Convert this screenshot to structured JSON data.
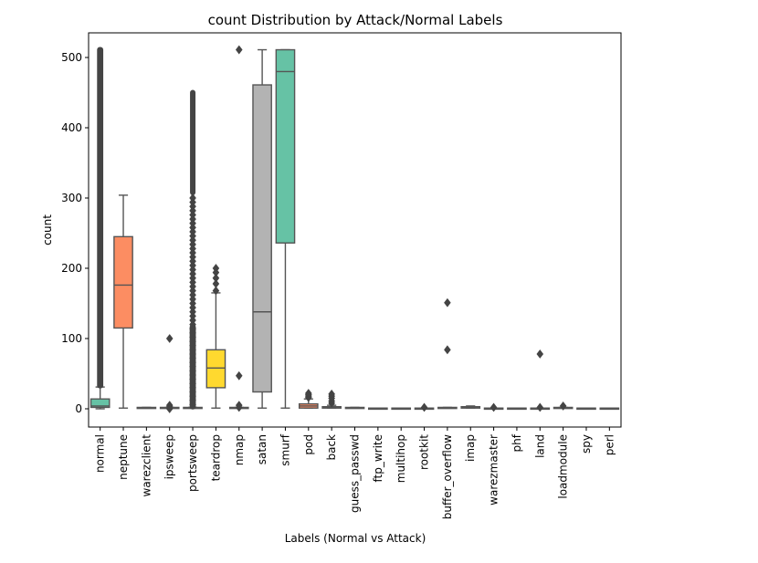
{
  "chart_data": {
    "type": "box",
    "title": "count Distribution by Attack/Normal Labels",
    "xlabel": "Labels (Normal vs Attack)",
    "ylabel": "count",
    "ylim": [
      -25,
      535
    ],
    "yticks": [
      0,
      100,
      200,
      300,
      400,
      500
    ],
    "grid": false,
    "categories": [
      "normal",
      "neptune",
      "warezclient",
      "ipsweep",
      "portsweep",
      "teardrop",
      "nmap",
      "satan",
      "smurf",
      "pod",
      "back",
      "guess_passwd",
      "ftp_write",
      "multihop",
      "rootkit",
      "buffer_overflow",
      "imap",
      "warezmaster",
      "phf",
      "land",
      "loadmodule",
      "spy",
      "perl"
    ],
    "boxes": [
      {
        "label": "normal",
        "color": "#66c2a5",
        "q1": 2,
        "median": 4,
        "q3": 14,
        "whislo": 0,
        "whishi": 31,
        "outliers": {
          "from": 33,
          "to": 511
        },
        "outlier_style": "dense"
      },
      {
        "label": "neptune",
        "color": "#fc8d62",
        "q1": 115,
        "median": 176,
        "q3": 245,
        "whislo": 1,
        "whishi": 304,
        "outliers": []
      },
      {
        "label": "warezclient",
        "color": "#8da0cb",
        "q1": 1,
        "median": 1,
        "q3": 2,
        "whislo": 1,
        "whishi": 2,
        "outliers": []
      },
      {
        "label": "ipsweep",
        "color": "#e78ac3",
        "q1": 1,
        "median": 1,
        "q3": 2,
        "whislo": 1,
        "whishi": 2,
        "outliers": [
          100,
          5,
          3,
          0
        ]
      },
      {
        "label": "portsweep",
        "color": "#a6d854",
        "q1": 1,
        "median": 1,
        "q3": 2,
        "whislo": 1,
        "whishi": 2,
        "outliers": {
          "from": 3,
          "to": 450
        },
        "outlier_style": "dense_tail"
      },
      {
        "label": "teardrop",
        "color": "#ffd92f",
        "q1": 30,
        "median": 58,
        "q3": 84,
        "whislo": 1,
        "whishi": 165,
        "outliers": [
          168,
          178,
          186,
          194,
          200
        ]
      },
      {
        "label": "nmap",
        "color": "#e5c494",
        "q1": 1,
        "median": 1,
        "q3": 2,
        "whislo": 1,
        "whishi": 2,
        "outliers": [
          511,
          47,
          5,
          2
        ]
      },
      {
        "label": "satan",
        "color": "#b3b3b3",
        "q1": 24,
        "median": 138,
        "q3": 461,
        "whislo": 1,
        "whishi": 511,
        "outliers": []
      },
      {
        "label": "smurf",
        "color": "#66c2a5",
        "q1": 236,
        "median": 480,
        "q3": 511,
        "whislo": 1,
        "whishi": 511,
        "outliers": []
      },
      {
        "label": "pod",
        "color": "#fc8d62",
        "q1": 1,
        "median": 4,
        "q3": 7,
        "whislo": 1,
        "whishi": 14,
        "outliers": [
          16,
          18,
          20,
          22
        ]
      },
      {
        "label": "back",
        "color": "#8da0cb",
        "q1": 1,
        "median": 2,
        "q3": 3,
        "whislo": 1,
        "whishi": 5,
        "outliers": [
          8,
          11,
          15,
          18,
          21
        ]
      },
      {
        "label": "guess_passwd",
        "color": "#e78ac3",
        "q1": 1,
        "median": 1,
        "q3": 2,
        "whislo": 1,
        "whishi": 2,
        "outliers": []
      },
      {
        "label": "ftp_write",
        "color": "#a6d854",
        "q1": 1,
        "median": 1,
        "q3": 1,
        "whislo": 1,
        "whishi": 1,
        "outliers": []
      },
      {
        "label": "multihop",
        "color": "#ffd92f",
        "q1": 1,
        "median": 1,
        "q3": 1,
        "whislo": 1,
        "whishi": 1,
        "outliers": []
      },
      {
        "label": "rootkit",
        "color": "#e5c494",
        "q1": 1,
        "median": 1,
        "q3": 1,
        "whislo": 1,
        "whishi": 1,
        "outliers": [
          2
        ]
      },
      {
        "label": "buffer_overflow",
        "color": "#b3b3b3",
        "q1": 1,
        "median": 1,
        "q3": 2,
        "whislo": 1,
        "whishi": 2,
        "outliers": [
          151,
          84
        ]
      },
      {
        "label": "imap",
        "color": "#66c2a5",
        "q1": 1,
        "median": 2,
        "q3": 3,
        "whislo": 1,
        "whishi": 4,
        "outliers": []
      },
      {
        "label": "warezmaster",
        "color": "#fc8d62",
        "q1": 1,
        "median": 1,
        "q3": 1,
        "whislo": 1,
        "whishi": 1,
        "outliers": [
          2
        ]
      },
      {
        "label": "phf",
        "color": "#8da0cb",
        "q1": 1,
        "median": 1,
        "q3": 1,
        "whislo": 1,
        "whishi": 1,
        "outliers": []
      },
      {
        "label": "land",
        "color": "#e78ac3",
        "q1": 1,
        "median": 1,
        "q3": 1,
        "whislo": 1,
        "whishi": 1,
        "outliers": [
          78,
          2
        ]
      },
      {
        "label": "loadmodule",
        "color": "#a6d854",
        "q1": 1,
        "median": 1,
        "q3": 2,
        "whislo": 1,
        "whishi": 2,
        "outliers": [
          4
        ]
      },
      {
        "label": "spy",
        "color": "#ffd92f",
        "q1": 1,
        "median": 1,
        "q3": 1,
        "whislo": 1,
        "whishi": 1,
        "outliers": []
      },
      {
        "label": "perl",
        "color": "#e5c494",
        "q1": 1,
        "median": 1,
        "q3": 1,
        "whislo": 1,
        "whishi": 1,
        "outliers": []
      }
    ]
  }
}
